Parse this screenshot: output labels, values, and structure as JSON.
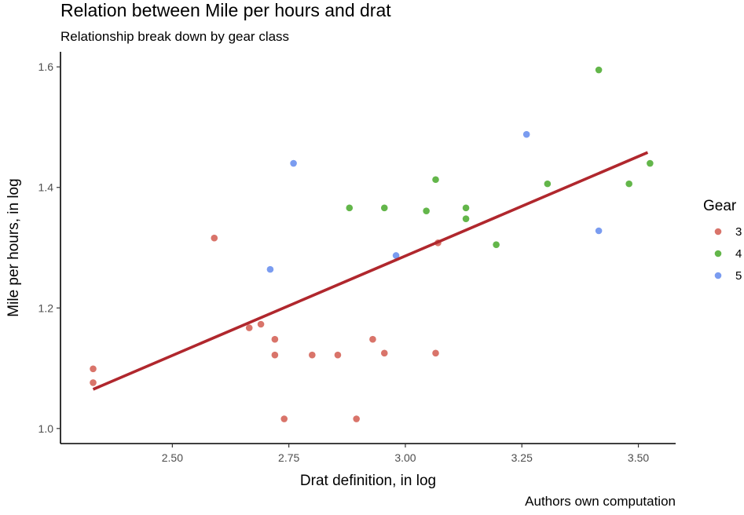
{
  "chart_data": {
    "type": "scatter",
    "title": "Relation between Mile per hours and drat",
    "subtitle": "Relationship break down by gear class",
    "caption": "Authors own computation",
    "xlabel": "Drat definition, in log",
    "ylabel": "Mile per hours, in log",
    "xlim": [
      2.26,
      3.58
    ],
    "ylim": [
      0.975,
      1.625
    ],
    "xticks": [
      2.5,
      2.75,
      3.0,
      3.25,
      3.5
    ],
    "xtick_labels": [
      "2.50",
      "2.75",
      "3.00",
      "3.25",
      "3.50"
    ],
    "yticks": [
      1.0,
      1.2,
      1.4,
      1.6
    ],
    "ytick_labels": [
      "1.0",
      "1.2",
      "1.4",
      "1.6"
    ],
    "grid": false,
    "legend": {
      "title": "Gear",
      "placement": "right"
    },
    "series": [
      {
        "name": "3",
        "color": "#d9746a",
        "points": [
          [
            2.33,
            1.099
          ],
          [
            2.33,
            1.076
          ],
          [
            2.59,
            1.316
          ],
          [
            2.665,
            1.167
          ],
          [
            2.69,
            1.173
          ],
          [
            2.72,
            1.148
          ],
          [
            2.72,
            1.122
          ],
          [
            2.74,
            1.016
          ],
          [
            2.8,
            1.122
          ],
          [
            2.855,
            1.122
          ],
          [
            2.895,
            1.016
          ],
          [
            2.93,
            1.148
          ],
          [
            2.955,
            1.125
          ],
          [
            3.065,
            1.125
          ],
          [
            3.07,
            1.308
          ]
        ]
      },
      {
        "name": "4",
        "color": "#63b64a",
        "points": [
          [
            2.88,
            1.366
          ],
          [
            2.955,
            1.366
          ],
          [
            3.045,
            1.361
          ],
          [
            3.065,
            1.413
          ],
          [
            3.13,
            1.366
          ],
          [
            3.13,
            1.348
          ],
          [
            3.195,
            1.305
          ],
          [
            3.305,
            1.406
          ],
          [
            3.415,
            1.595
          ],
          [
            3.48,
            1.406
          ],
          [
            3.525,
            1.44
          ]
        ]
      },
      {
        "name": "5",
        "color": "#7a9cf0",
        "points": [
          [
            2.71,
            1.264
          ],
          [
            2.76,
            1.44
          ],
          [
            2.98,
            1.287
          ],
          [
            3.26,
            1.488
          ],
          [
            3.415,
            1.328
          ]
        ]
      }
    ],
    "fit_line": {
      "color": "#b0272d",
      "from": [
        2.33,
        1.065
      ],
      "to": [
        3.52,
        1.458
      ]
    }
  }
}
